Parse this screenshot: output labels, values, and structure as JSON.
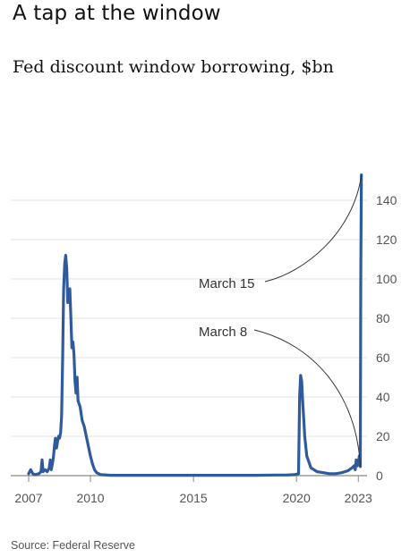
{
  "header": {
    "title": "A tap at the window",
    "subtitle": "Fed discount window borrowing, $bn"
  },
  "footer": {
    "source": "Source: Federal Reserve"
  },
  "colors": {
    "series": "#2f5b9c",
    "grid": "#e3e3e3",
    "axis": "#888888",
    "annotation": "#333333"
  },
  "chart_data": {
    "type": "line",
    "title": "Fed discount window borrowing, $bn",
    "xlabel": "",
    "ylabel": "",
    "xlim": [
      2007,
      2023.25
    ],
    "ylim": [
      0,
      155
    ],
    "x_ticks": [
      {
        "value": 2007,
        "label": "2007"
      },
      {
        "value": 2010,
        "label": "2010"
      },
      {
        "value": 2015,
        "label": "2015"
      },
      {
        "value": 2020,
        "label": "2020"
      },
      {
        "value": 2023,
        "label": "2023"
      }
    ],
    "y_ticks": [
      {
        "value": 0,
        "label": "0"
      },
      {
        "value": 20,
        "label": "20"
      },
      {
        "value": 40,
        "label": "40"
      },
      {
        "value": 60,
        "label": "60"
      },
      {
        "value": 80,
        "label": "80"
      },
      {
        "value": 100,
        "label": "100"
      },
      {
        "value": 120,
        "label": "120"
      },
      {
        "value": 140,
        "label": "140"
      }
    ],
    "y_axis_side": "right",
    "grid": "horizontal",
    "series": [
      {
        "color": "#2f5b9c",
        "points": [
          [
            2007.0,
            1
          ],
          [
            2007.1,
            3
          ],
          [
            2007.2,
            1
          ],
          [
            2007.3,
            0.5
          ],
          [
            2007.5,
            1
          ],
          [
            2007.6,
            2
          ],
          [
            2007.65,
            8
          ],
          [
            2007.7,
            2
          ],
          [
            2007.8,
            3
          ],
          [
            2007.9,
            2
          ],
          [
            2008.0,
            4
          ],
          [
            2008.05,
            8
          ],
          [
            2008.1,
            3
          ],
          [
            2008.15,
            6
          ],
          [
            2008.2,
            9
          ],
          [
            2008.25,
            15
          ],
          [
            2008.3,
            19
          ],
          [
            2008.35,
            14
          ],
          [
            2008.4,
            17
          ],
          [
            2008.45,
            20
          ],
          [
            2008.5,
            19
          ],
          [
            2008.55,
            22
          ],
          [
            2008.6,
            30
          ],
          [
            2008.65,
            60
          ],
          [
            2008.7,
            95
          ],
          [
            2008.75,
            108
          ],
          [
            2008.8,
            112
          ],
          [
            2008.85,
            105
          ],
          [
            2008.9,
            88
          ],
          [
            2008.95,
            92
          ],
          [
            2009.0,
            95
          ],
          [
            2009.05,
            80
          ],
          [
            2009.1,
            65
          ],
          [
            2009.15,
            68
          ],
          [
            2009.2,
            62
          ],
          [
            2009.25,
            48
          ],
          [
            2009.3,
            42
          ],
          [
            2009.35,
            50
          ],
          [
            2009.4,
            38
          ],
          [
            2009.5,
            35
          ],
          [
            2009.6,
            28
          ],
          [
            2009.7,
            25
          ],
          [
            2009.8,
            20
          ],
          [
            2009.9,
            15
          ],
          [
            2010.0,
            10
          ],
          [
            2010.1,
            6
          ],
          [
            2010.2,
            3
          ],
          [
            2010.3,
            1.5
          ],
          [
            2010.5,
            0.5
          ],
          [
            2011.0,
            0.2
          ],
          [
            2012.0,
            0.2
          ],
          [
            2013.0,
            0.2
          ],
          [
            2014.0,
            0.2
          ],
          [
            2015.0,
            0.2
          ],
          [
            2016.0,
            0.2
          ],
          [
            2017.0,
            0.2
          ],
          [
            2018.0,
            0.2
          ],
          [
            2019.0,
            0.3
          ],
          [
            2019.5,
            0.3
          ],
          [
            2019.9,
            0.5
          ],
          [
            2020.1,
            1
          ],
          [
            2020.15,
            40
          ],
          [
            2020.2,
            51
          ],
          [
            2020.25,
            48
          ],
          [
            2020.3,
            38
          ],
          [
            2020.4,
            20
          ],
          [
            2020.5,
            10
          ],
          [
            2020.7,
            4
          ],
          [
            2021.0,
            2
          ],
          [
            2021.3,
            1.5
          ],
          [
            2021.6,
            1
          ],
          [
            2021.9,
            1
          ],
          [
            2022.2,
            1.5
          ],
          [
            2022.5,
            2.5
          ],
          [
            2022.7,
            4
          ],
          [
            2022.8,
            5
          ],
          [
            2022.85,
            3
          ],
          [
            2022.9,
            8
          ],
          [
            2022.95,
            5
          ],
          [
            2023.0,
            6
          ],
          [
            2023.05,
            10
          ],
          [
            2023.1,
            4.6
          ],
          [
            2023.12,
            100
          ],
          [
            2023.15,
            152.9
          ]
        ]
      }
    ],
    "annotations": [
      {
        "label": "March 15",
        "x": 2023.15,
        "y": 152.9
      },
      {
        "label": "March 8",
        "x": 2023.1,
        "y": 4.6
      }
    ]
  }
}
